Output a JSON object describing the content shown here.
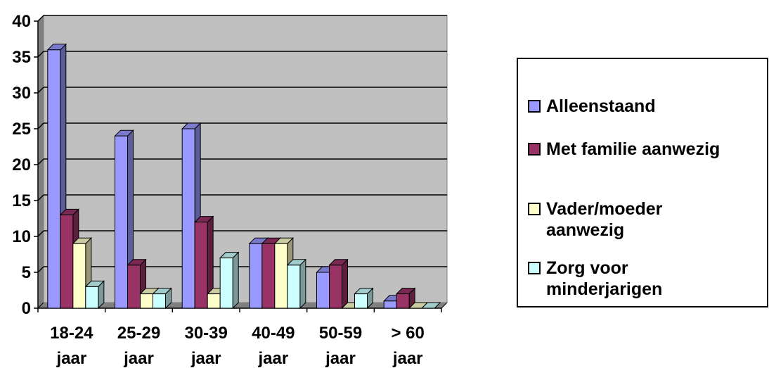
{
  "chart_data": {
    "type": "bar",
    "title": "",
    "xlabel": "",
    "ylabel": "",
    "ylim": [
      0,
      40
    ],
    "yticks": [
      0,
      5,
      10,
      15,
      20,
      25,
      30,
      35,
      40
    ],
    "grid": true,
    "legend_position": "right",
    "categories": [
      "18-24 jaar",
      "25-29 jaar",
      "30-39 jaar",
      "40-49 jaar",
      "50-59 jaar",
      "> 60 jaar"
    ],
    "category_lines": [
      [
        "18-24",
        "jaar"
      ],
      [
        "25-29",
        "jaar"
      ],
      [
        "30-39",
        "jaar"
      ],
      [
        "40-49",
        "jaar"
      ],
      [
        "50-59",
        "jaar"
      ],
      [
        "> 60",
        "jaar"
      ]
    ],
    "series": [
      {
        "name": "Alleenstaand",
        "color": "#9999ff",
        "values": [
          36,
          24,
          25,
          9,
          5,
          1
        ]
      },
      {
        "name": "Met familie aanwezig",
        "color": "#993366",
        "values": [
          13,
          6,
          12,
          9,
          6,
          2
        ]
      },
      {
        "name": "Vader/moeder aanwezig",
        "color": "#ffffcc",
        "values": [
          9,
          2,
          2,
          9,
          0,
          0
        ]
      },
      {
        "name": "Zorg voor minderjarigen",
        "color": "#ccffff",
        "values": [
          3,
          2,
          7,
          6,
          2,
          0
        ]
      }
    ],
    "plot_background": "#c0c0c0"
  },
  "legend": {
    "items": [
      {
        "label": "Alleenstaand",
        "color": "#9999ff"
      },
      {
        "label": "Met familie aanwezig",
        "color": "#993366"
      },
      {
        "label": "Vader/moeder aanwezig",
        "color": "#ffffcc"
      },
      {
        "label": "Zorg voor minderjarigen",
        "color": "#ccffff"
      }
    ]
  }
}
